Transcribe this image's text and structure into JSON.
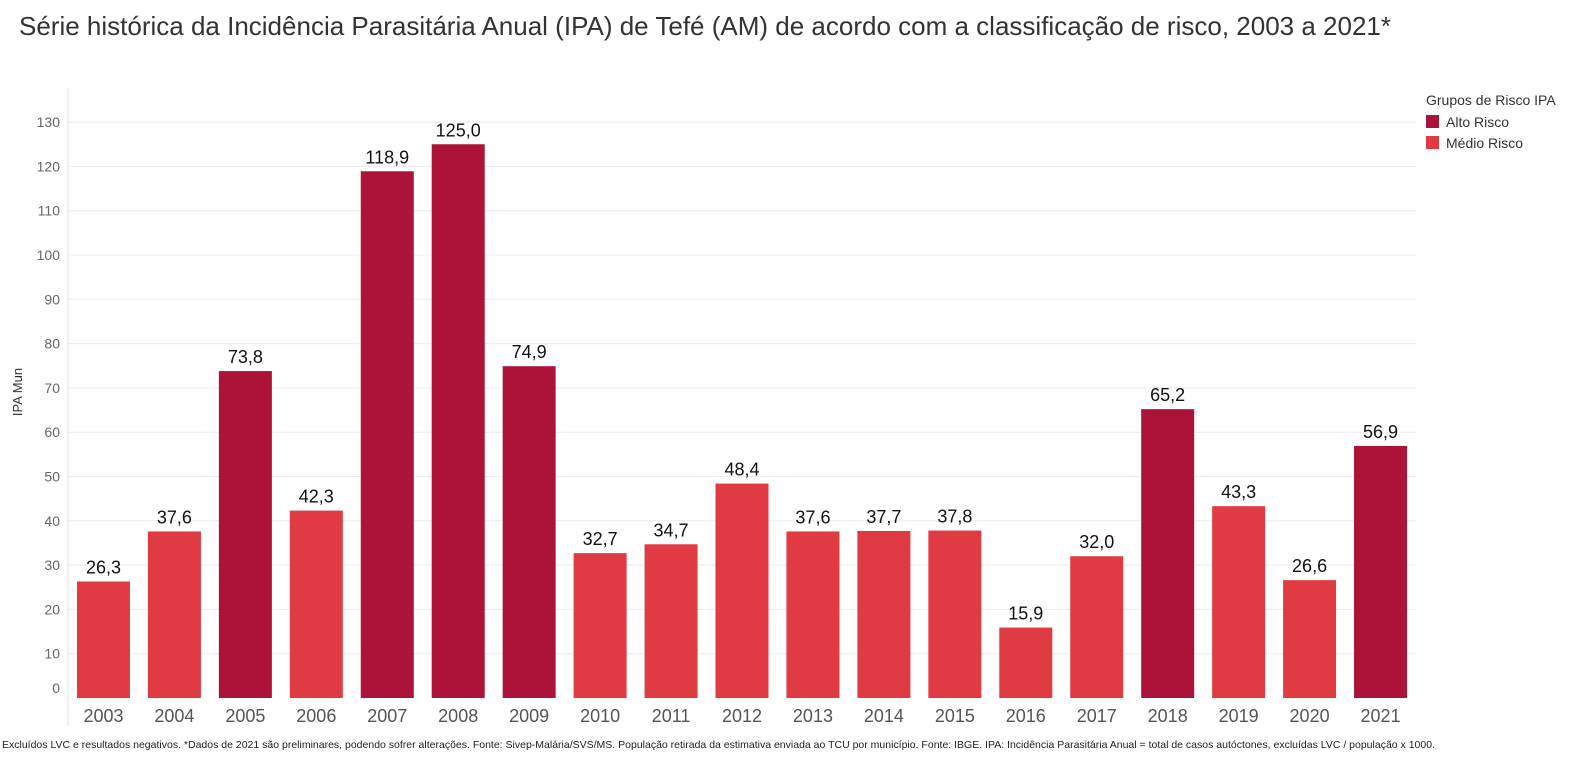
{
  "chart_data": {
    "type": "bar",
    "title": "Série histórica da Incidência Parasitária Anual (IPA) de Tefé (AM) de acordo com a classificação de risco, 2003 a 2021*",
    "ylabel": "IPA Mun",
    "xlabel": "",
    "ylim": [
      0,
      130
    ],
    "yticks": [
      "0",
      "10",
      "20",
      "30",
      "40",
      "50",
      "60",
      "70",
      "80",
      "90",
      "100",
      "110",
      "120",
      "130"
    ],
    "grid": true,
    "legend_position": "top-right",
    "legend_title": "Grupos de Risco IPA",
    "groups": [
      {
        "name": "Alto Risco",
        "color": "#ad1339"
      },
      {
        "name": "Médio Risco",
        "color": "#e03b43"
      }
    ],
    "categories": [
      "2003",
      "2004",
      "2005",
      "2006",
      "2007",
      "2008",
      "2009",
      "2010",
      "2011",
      "2012",
      "2013",
      "2014",
      "2015",
      "2016",
      "2017",
      "2018",
      "2019",
      "2020",
      "2021"
    ],
    "values": [
      26.3,
      37.6,
      73.8,
      42.3,
      118.9,
      125.0,
      74.9,
      32.7,
      34.7,
      48.4,
      37.6,
      37.7,
      37.8,
      15.9,
      32.0,
      65.2,
      43.3,
      26.6,
      56.9
    ],
    "labels": [
      "26,3",
      "37,6",
      "73,8",
      "42,3",
      "118,9",
      "125,0",
      "74,9",
      "32,7",
      "34,7",
      "48,4",
      "37,6",
      "37,7",
      "37,8",
      "15,9",
      "32,0",
      "65,2",
      "43,3",
      "26,6",
      "56,9"
    ],
    "risk_group": [
      "Médio Risco",
      "Médio Risco",
      "Alto Risco",
      "Médio Risco",
      "Alto Risco",
      "Alto Risco",
      "Alto Risco",
      "Médio Risco",
      "Médio Risco",
      "Médio Risco",
      "Médio Risco",
      "Médio Risco",
      "Médio Risco",
      "Médio Risco",
      "Médio Risco",
      "Alto Risco",
      "Médio Risco",
      "Médio Risco",
      "Alto Risco"
    ]
  },
  "footnote": "Excluídos LVC e resultados negativos. *Dados de 2021 são preliminares, podendo sofrer alterações. Fonte: Sivep-Malária/SVS/MS. População retirada da estimativa enviada ao TCU por município. Fonte: IBGE. IPA: Incidência Parasitária Anual = total de casos autóctones, excluídas LVC / população x 1000."
}
